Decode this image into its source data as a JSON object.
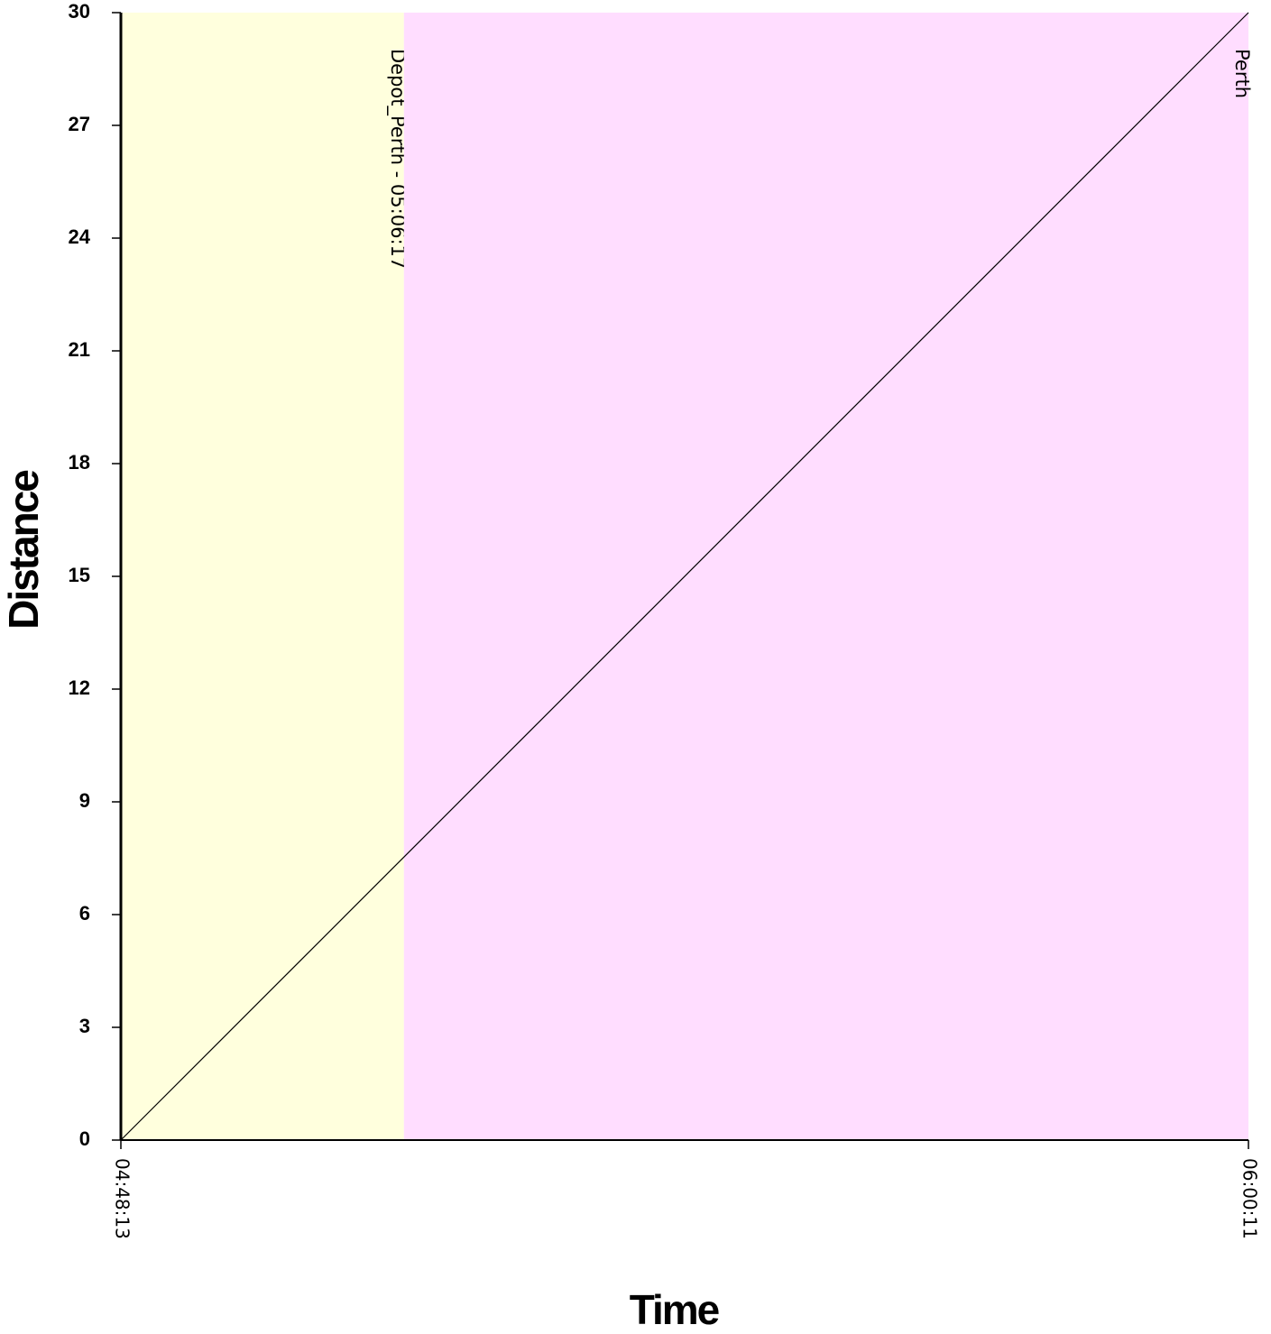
{
  "chart_data": {
    "type": "line",
    "xlabel": "Time",
    "ylabel": "Distance",
    "x_tick_labels": [
      "04:48:13",
      "06:00:11"
    ],
    "xlim": [
      "04:48:13",
      "06:00:11"
    ],
    "ylim": [
      0,
      30
    ],
    "y_ticks": [
      0,
      3,
      6,
      9,
      12,
      15,
      18,
      21,
      24,
      27,
      30
    ],
    "grid": false,
    "bands": [
      {
        "label": "Depot_Perth - 05:06:17",
        "from": "04:48:13",
        "to": "05:06:17",
        "color": "#ffffdd"
      },
      {
        "label": "Perth",
        "from": "05:06:17",
        "to": "06:00:11",
        "color": "#ffddff"
      }
    ],
    "series": [
      {
        "x": [
          "04:48:13",
          "06:00:11"
        ],
        "y": [
          0,
          30
        ],
        "color": "#000000"
      }
    ]
  }
}
